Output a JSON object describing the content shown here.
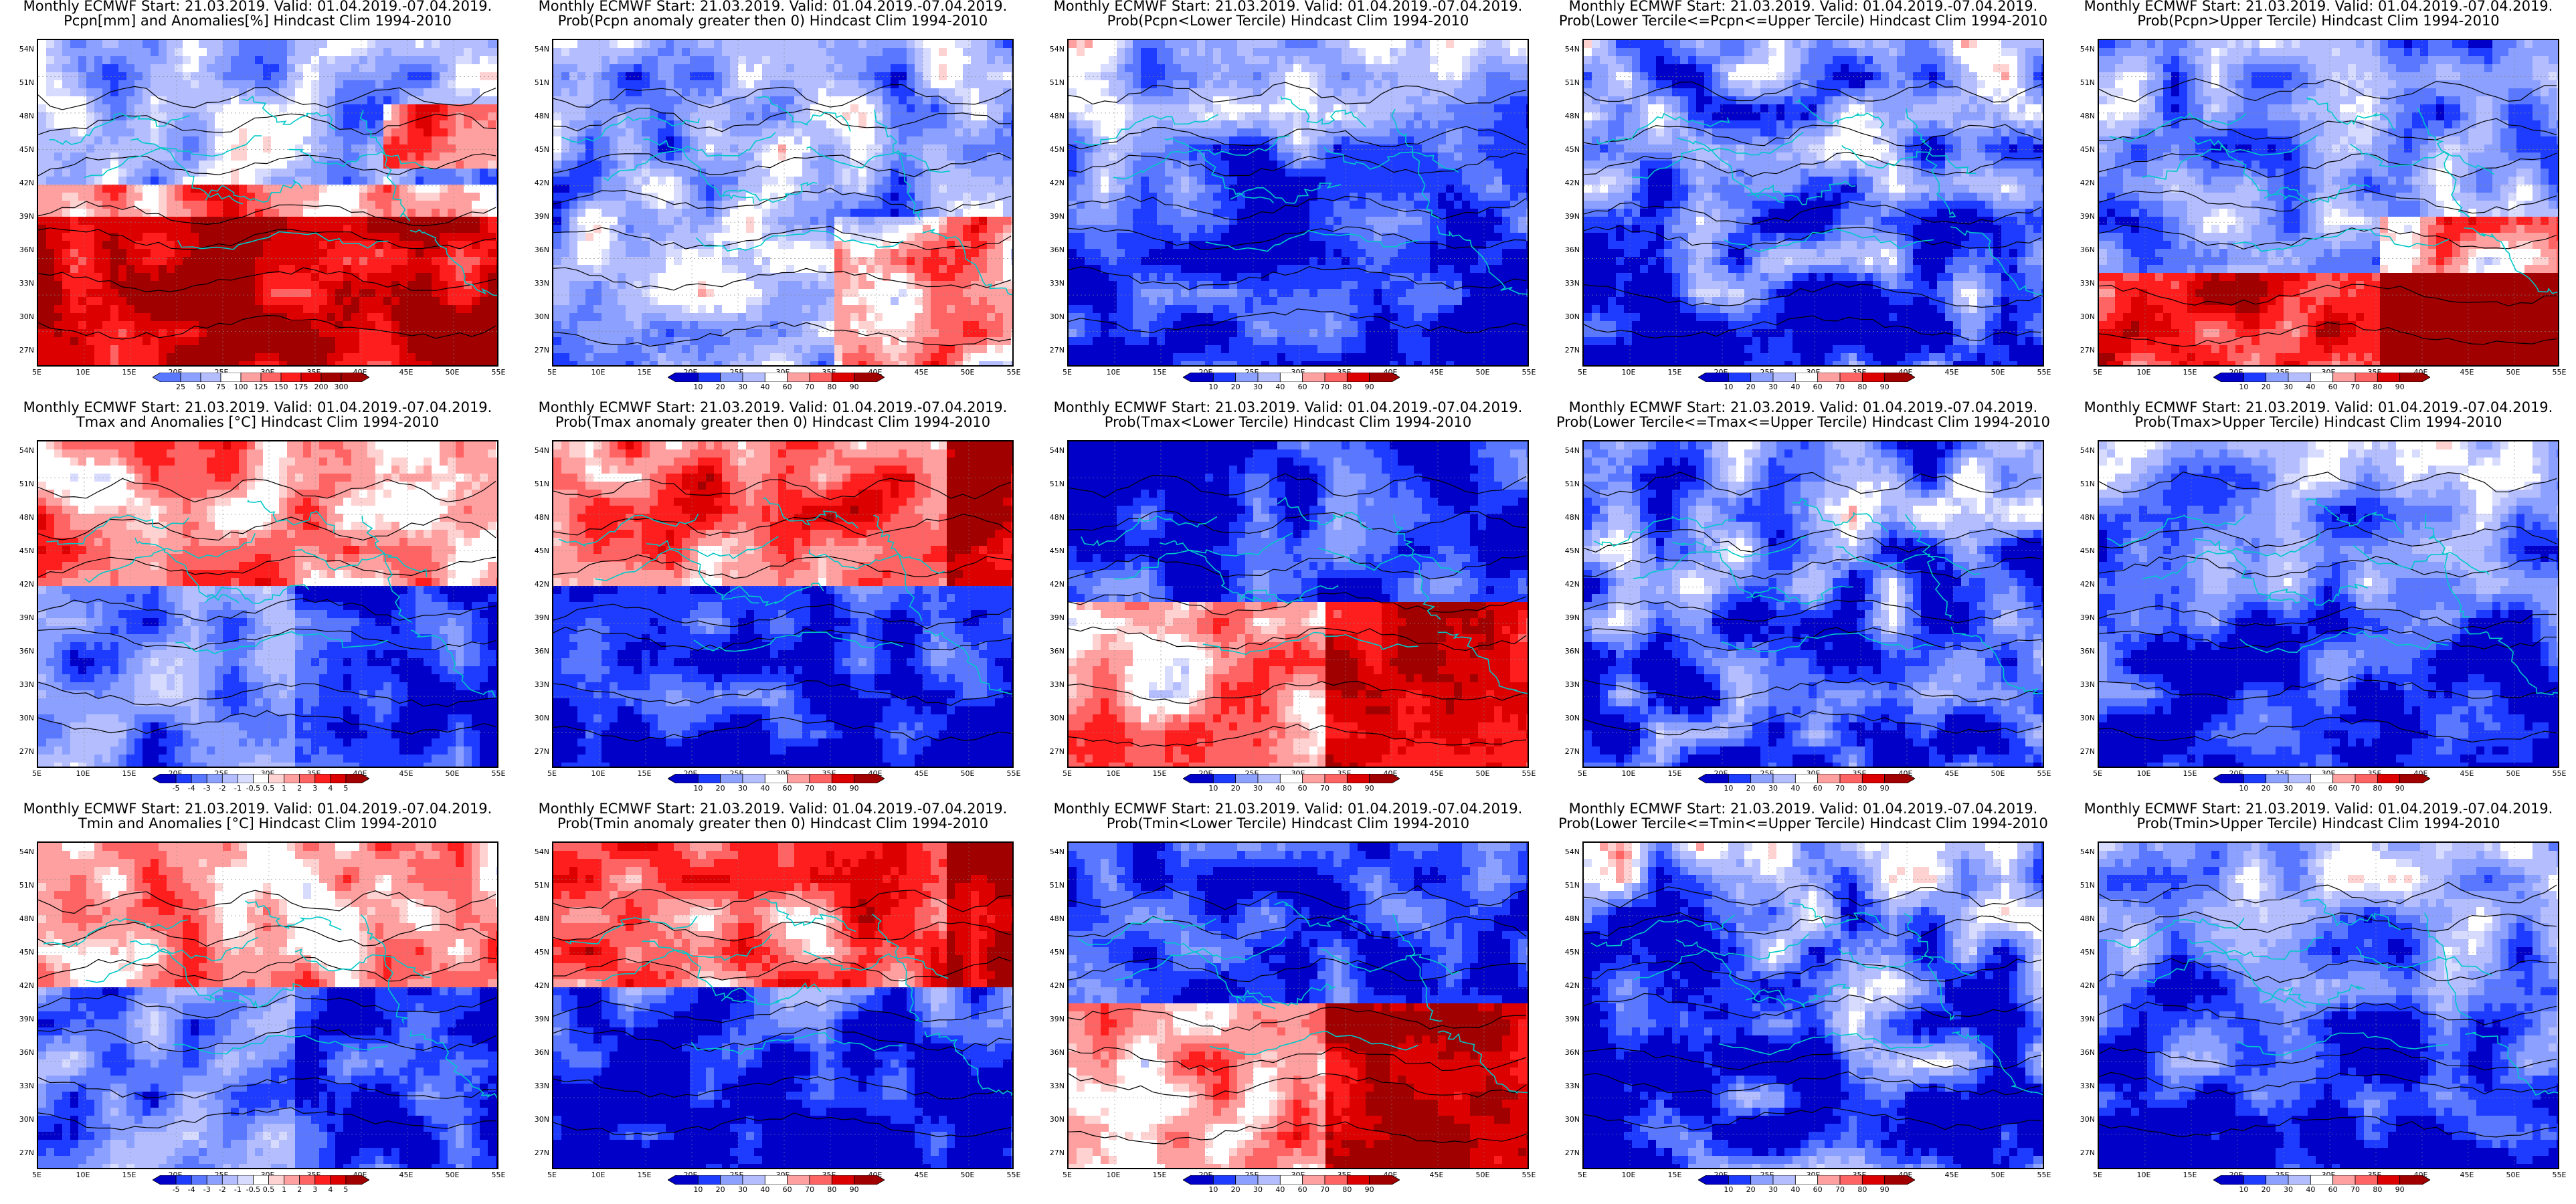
{
  "panels": [
    {
      "t1": "Monthly ECMWF Start: 21.03.2019. Valid: 01.04.2019.-07.04.2019.",
      "t2": "Pcpn[mm] and Anomalies[%] Hindcast Clim 1994-2010",
      "scheme": "precip_anom",
      "cb": [
        "25",
        "50",
        "75",
        "100",
        "125",
        "150",
        "175",
        "200",
        "300"
      ]
    },
    {
      "t1": "Monthly ECMWF Start: 21.03.2019. Valid: 01.04.2019.-07.04.2019.",
      "t2": "Prob(Pcpn anomaly greater then 0) Hindcast Clim 1994-2010",
      "scheme": "prob_lo",
      "cb": [
        "10",
        "20",
        "30",
        "40",
        "60",
        "70",
        "80",
        "90"
      ]
    },
    {
      "t1": "Monthly ECMWF Start: 21.03.2019. Valid: 01.04.2019.-07.04.2019.",
      "t2": "Prob(Pcpn<Lower Tercile) Hindcast Clim 1994-2010",
      "scheme": "blue_south",
      "cb": [
        "10",
        "20",
        "30",
        "40",
        "60",
        "70",
        "80",
        "90"
      ]
    },
    {
      "t1": "Monthly ECMWF Start: 21.03.2019. Valid: 01.04.2019.-07.04.2019.",
      "t2": "Prob(Lower Tercile<=Pcpn<=Upper Tercile) Hindcast Clim 1994-2010",
      "scheme": "blue_mid",
      "cb": [
        "10",
        "20",
        "30",
        "40",
        "60",
        "70",
        "80",
        "90"
      ]
    },
    {
      "t1": "Monthly ECMWF Start: 21.03.2019. Valid: 01.04.2019.-07.04.2019.",
      "t2": "Prob(Pcpn>Upper Tercile) Hindcast Clim 1994-2010",
      "scheme": "red_south",
      "cb": [
        "10",
        "20",
        "30",
        "40",
        "60",
        "70",
        "80",
        "90"
      ]
    },
    {
      "t1": "Monthly ECMWF Start: 21.03.2019. Valid: 01.04.2019.-07.04.2019.",
      "t2": "Tmax and Anomalies [°C] Hindcast Clim 1994-2010",
      "scheme": "tanom_mix",
      "cb": [
        "-5",
        "-4",
        "-3",
        "-2",
        "-1",
        "-0.5",
        "0.5",
        "1",
        "2",
        "3",
        "4",
        "5"
      ]
    },
    {
      "t1": "Monthly ECMWF Start: 21.03.2019. Valid: 01.04.2019.-07.04.2019.",
      "t2": "Prob(Tmax anomaly greater then 0) Hindcast Clim 1994-2010",
      "scheme": "red_north",
      "cb": [
        "10",
        "20",
        "30",
        "40",
        "60",
        "70",
        "80",
        "90"
      ]
    },
    {
      "t1": "Monthly ECMWF Start: 21.03.2019. Valid: 01.04.2019.-07.04.2019.",
      "t2": "Prob(Tmax<Lower Tercile) Hindcast Clim 1994-2010",
      "scheme": "blue_north",
      "cb": [
        "10",
        "20",
        "30",
        "40",
        "60",
        "70",
        "80",
        "90"
      ]
    },
    {
      "t1": "Monthly ECMWF Start: 21.03.2019. Valid: 01.04.2019.-07.04.2019.",
      "t2": "Prob(Lower Tercile<=Tmax<=Upper Tercile) Hindcast Clim 1994-2010",
      "scheme": "blue_mid",
      "cb": [
        "10",
        "20",
        "30",
        "40",
        "60",
        "70",
        "80",
        "90"
      ]
    },
    {
      "t1": "Monthly ECMWF Start: 21.03.2019. Valid: 01.04.2019.-07.04.2019.",
      "t2": "Prob(Tmax>Upper Tercile) Hindcast Clim 1994-2010",
      "scheme": "blue_south",
      "cb": [
        "10",
        "20",
        "30",
        "40",
        "60",
        "70",
        "80",
        "90"
      ]
    },
    {
      "t1": "Monthly ECMWF Start: 21.03.2019. Valid: 01.04.2019.-07.04.2019.",
      "t2": "Tmin and Anomalies [°C] Hindcast Clim 1994-2010",
      "scheme": "tanom_mix",
      "cb": [
        "-5",
        "-4",
        "-3",
        "-2",
        "-1",
        "-0.5",
        "0.5",
        "1",
        "2",
        "3",
        "4",
        "5"
      ]
    },
    {
      "t1": "Monthly ECMWF Start: 21.03.2019. Valid: 01.04.2019.-07.04.2019.",
      "t2": "Prob(Tmin anomaly greater then 0) Hindcast Clim 1994-2010",
      "scheme": "red_north",
      "cb": [
        "10",
        "20",
        "30",
        "40",
        "60",
        "70",
        "80",
        "90"
      ]
    },
    {
      "t1": "Monthly ECMWF Start: 21.03.2019. Valid: 01.04.2019.-07.04.2019.",
      "t2": "Prob(Tmin<Lower Tercile) Hindcast Clim 1994-2010",
      "scheme": "blue_north",
      "cb": [
        "10",
        "20",
        "30",
        "40",
        "60",
        "70",
        "80",
        "90"
      ]
    },
    {
      "t1": "Monthly ECMWF Start: 21.03.2019. Valid: 01.04.2019.-07.04.2019.",
      "t2": "Prob(Lower Tercile<=Tmin<=Upper Tercile) Hindcast Clim 1994-2010",
      "scheme": "blue_mid",
      "cb": [
        "10",
        "20",
        "30",
        "40",
        "60",
        "70",
        "80",
        "90"
      ]
    },
    {
      "t1": "Monthly ECMWF Start: 21.03.2019. Valid: 01.04.2019.-07.04.2019.",
      "t2": "Prob(Tmin>Upper Tercile) Hindcast Clim 1994-2010",
      "scheme": "blue_south",
      "cb": [
        "10",
        "20",
        "30",
        "40",
        "60",
        "70",
        "80",
        "90"
      ]
    }
  ],
  "lat_ticks": [
    "54N",
    "51N",
    "48N",
    "45N",
    "42N",
    "39N",
    "36N",
    "33N",
    "30N",
    "27N"
  ],
  "lon_ticks": [
    "5E",
    "10E",
    "15E",
    "20E",
    "25E",
    "30E",
    "35E",
    "40E",
    "45E",
    "50E",
    "55E"
  ],
  "colors": {
    "border": "#00c8c8",
    "contour": "#000000",
    "blue_scale": [
      "#0000c8",
      "#1e3cff",
      "#5a78ff",
      "#8ca0ff",
      "#b4beff",
      "#d7dcff"
    ],
    "red_scale": [
      "#ffd2d2",
      "#ffa0a0",
      "#ff6464",
      "#ff1e1e",
      "#dc0000",
      "#a00000"
    ]
  }
}
